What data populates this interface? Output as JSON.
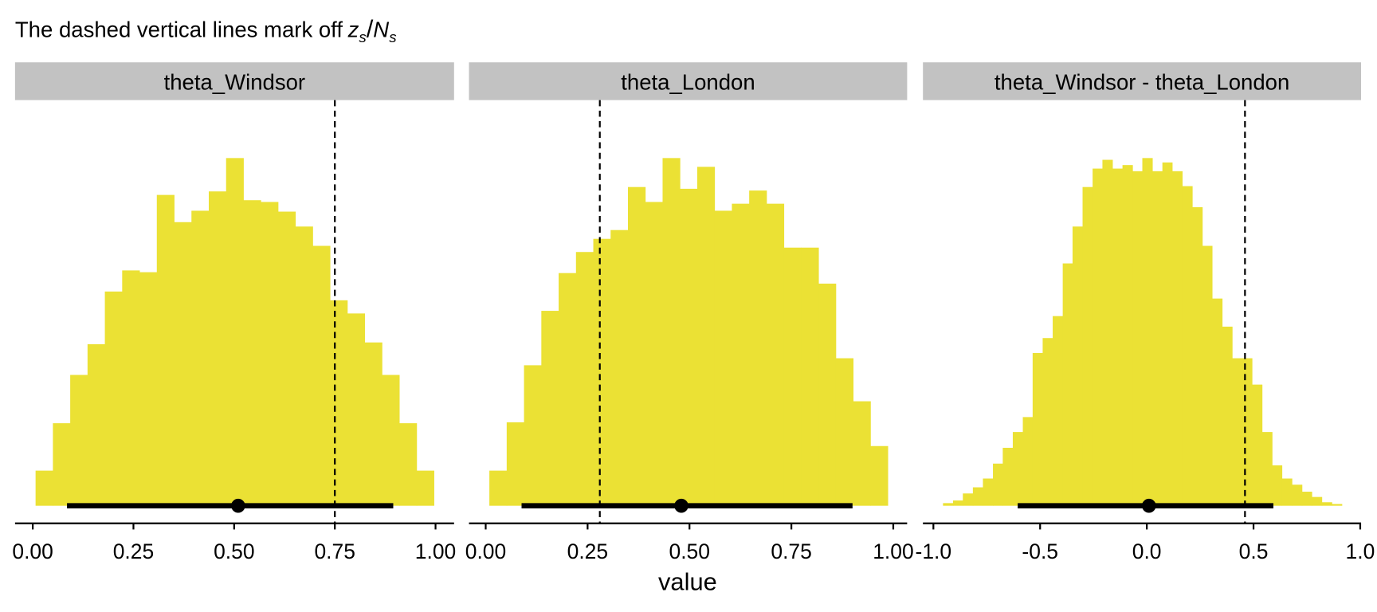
{
  "title": "The dashed vertical lines mark off",
  "title_math": {
    "numerator": "z",
    "numerator_sub": "s",
    "denominator": "N",
    "denominator_sub": "s"
  },
  "x_label": "value",
  "chart_data": [
    {
      "type": "histogram",
      "title": "theta_Windsor",
      "color": "#ebe134",
      "bins": [
        0.007,
        0.05,
        0.093,
        0.136,
        0.179,
        0.222,
        0.265,
        0.308,
        0.351,
        0.394,
        0.437,
        0.48,
        0.523,
        0.566,
        0.609,
        0.652,
        0.695,
        0.738,
        0.781,
        0.824,
        0.867,
        0.91,
        0.953,
        0.996
      ],
      "counts": [
        40,
        94,
        149,
        184,
        244,
        268,
        266,
        354,
        323,
        336,
        358,
        396,
        348,
        346,
        335,
        318,
        296,
        234,
        219,
        186,
        149,
        94,
        40
      ],
      "xlim": [
        -0.044,
        1.046
      ],
      "ylim": [
        -20,
        462
      ],
      "xticks": [
        {
          "value": 0,
          "label": "0.00"
        },
        0.25,
        {
          "value": 0.5,
          "label": "0.50"
        },
        0.75,
        {
          "value": 1,
          "label": "1.00"
        }
      ],
      "vline": 0.75,
      "point_estimate": 0.51,
      "interval": [
        0.085,
        0.895
      ]
    },
    {
      "type": "histogram",
      "title": "theta_London",
      "color": "#ebe134",
      "bins": [
        0.009,
        0.0515,
        0.094,
        0.1365,
        0.179,
        0.2215,
        0.264,
        0.3065,
        0.349,
        0.3915,
        0.434,
        0.4765,
        0.519,
        0.5615,
        0.604,
        0.6465,
        0.689,
        0.7315,
        0.774,
        0.8165,
        0.859,
        0.9015,
        0.944,
        0.9865
      ],
      "counts": [
        40,
        95,
        160,
        222,
        265,
        289,
        304,
        314,
        363,
        346,
        396,
        361,
        386,
        336,
        344,
        359,
        344,
        294,
        294,
        253,
        168,
        119,
        68
      ],
      "xlim": [
        -0.041,
        1.034
      ],
      "ylim": [
        -20,
        462
      ],
      "xticks": [
        {
          "value": 0,
          "label": "0.00"
        },
        0.25,
        {
          "value": 0.5,
          "label": "0.50"
        },
        0.75,
        {
          "value": 1,
          "label": "1.00"
        }
      ],
      "vline": 0.28,
      "point_estimate": 0.48,
      "interval": [
        0.088,
        0.9
      ]
    },
    {
      "type": "histogram",
      "title": "theta_Windsor - theta_London",
      "color": "#ebe134",
      "bins": [
        -0.955,
        -0.908,
        -0.862,
        -0.815,
        -0.768,
        -0.721,
        -0.675,
        -0.628,
        -0.581,
        -0.535,
        -0.488,
        -0.441,
        -0.394,
        -0.348,
        -0.301,
        -0.254,
        -0.208,
        -0.161,
        -0.114,
        -0.067,
        -0.021,
        0.026,
        0.073,
        0.119,
        0.166,
        0.213,
        0.26,
        0.306,
        0.353,
        0.4,
        0.446,
        0.493,
        0.54,
        0.587,
        0.633,
        0.68,
        0.727,
        0.773,
        0.82,
        0.867,
        0.914
      ],
      "counts": [
        3,
        6,
        14,
        21,
        31,
        48,
        66,
        84,
        101,
        174,
        191,
        216,
        276,
        318,
        363,
        384,
        394,
        384,
        388,
        381,
        396,
        381,
        391,
        381,
        364,
        340,
        296,
        236,
        204,
        168,
        168,
        138,
        84,
        46,
        31,
        24,
        16,
        10,
        4,
        2
      ],
      "xlim": [
        -1.049,
        1.004
      ],
      "ylim": [
        -20,
        462
      ],
      "xticks": [
        {
          "value": -1,
          "label": "-1.0"
        },
        -0.5,
        {
          "value": 0,
          "label": "0.0"
        },
        0.5,
        {
          "value": 1,
          "label": "1.0"
        }
      ],
      "vline": 0.46,
      "point_estimate": 0.01,
      "interval": [
        -0.605,
        0.593
      ]
    }
  ]
}
